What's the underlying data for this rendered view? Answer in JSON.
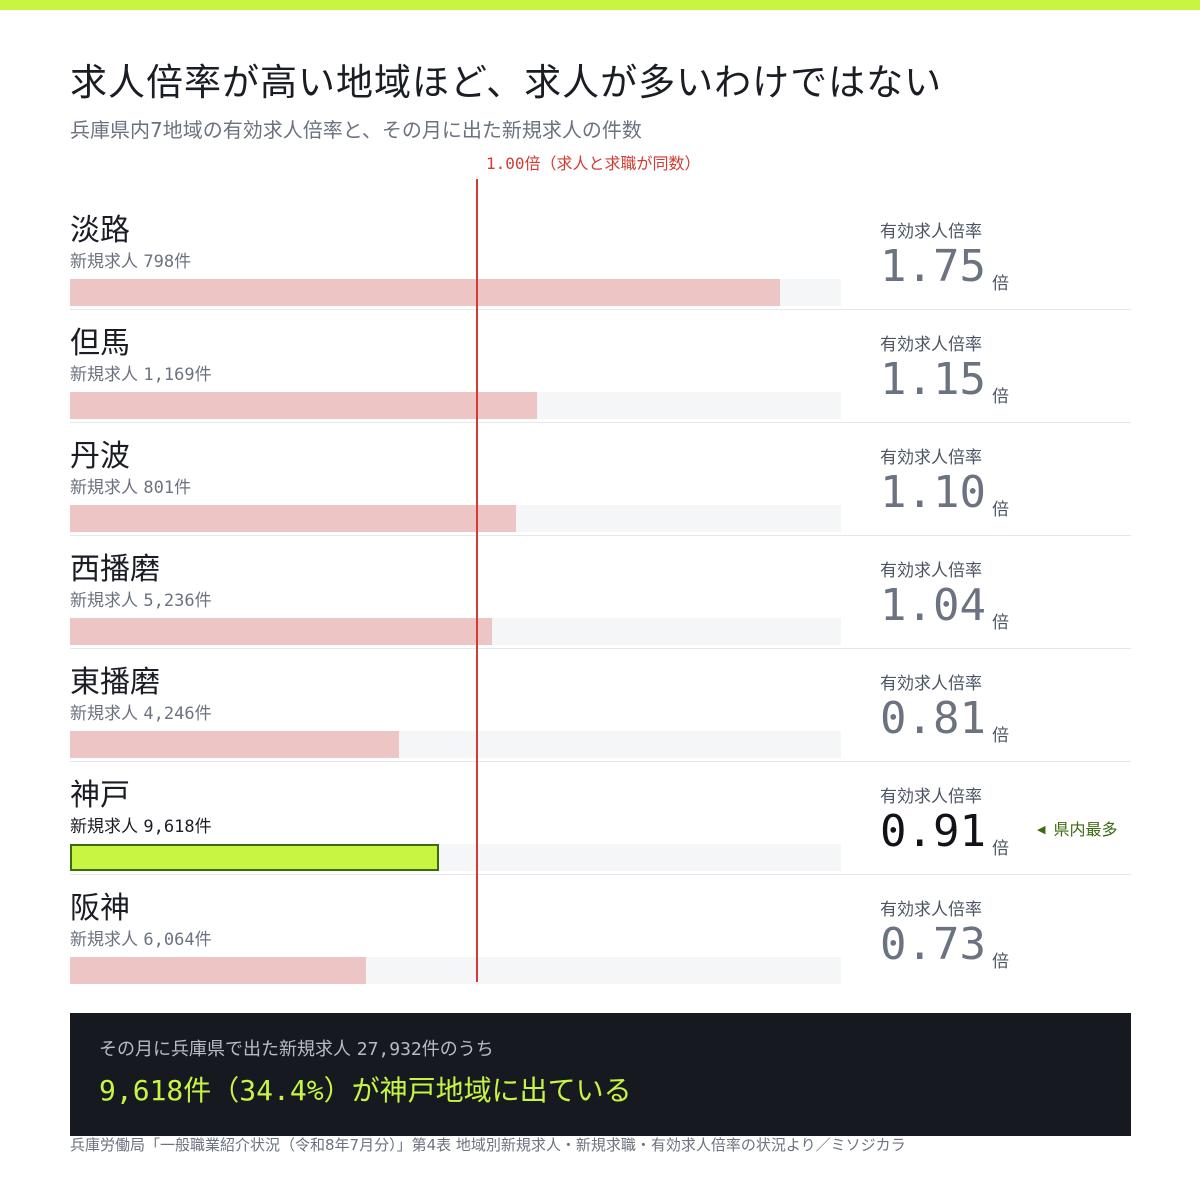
{
  "colors": {
    "accent": "#c8f542",
    "accent_dark": "#3d6b12",
    "bar": "#eec5c5",
    "track": "#f5f6f8",
    "reference_line": "#d23b34",
    "summary_bg": "#161920"
  },
  "title": "求人倍率が高い地域ほど、求人が多いわけではない",
  "subtitle": "兵庫県内7地域の有効求人倍率と、その月に出た新規求人の件数",
  "reference_label": "1.00倍（求人と求職が同数）",
  "ratio_label": "有効求人倍率",
  "ratio_unit": "倍",
  "count_prefix": "新規求人",
  "count_suffix": "件",
  "max_tag": "県内最多",
  "summary": {
    "lead_text": "その月に兵庫県で出た新規求人",
    "lead_total": "27,932件",
    "lead_tail": "のうち",
    "main_count": "9,618件（34.4%）",
    "main_text": "が神戸地域に出ている"
  },
  "source": "兵庫労働局「一般職業紹介状況（令和8年7月分）」第4表 地域別新規求人・新規求職・有効求人倍率の状況より／ミソジカラ",
  "chart_data": {
    "type": "bar",
    "orientation": "horizontal",
    "title": "求人倍率が高い地域ほど、求人が多いわけではない",
    "subtitle": "兵庫県内7地域の有効求人倍率と、その月に出た新規求人の件数",
    "xlim": [
      0,
      1.9
    ],
    "reference_value": 1.0,
    "reference_label": "1.00倍（求人と求職が同数）",
    "highlight": "神戸",
    "rows": [
      {
        "region": "淡路",
        "count": "798",
        "ratio": 1.75,
        "ratio_text": "1.75"
      },
      {
        "region": "但馬",
        "count": "1,169",
        "ratio": 1.15,
        "ratio_text": "1.15"
      },
      {
        "region": "丹波",
        "count": "801",
        "ratio": 1.1,
        "ratio_text": "1.10"
      },
      {
        "region": "西播磨",
        "count": "5,236",
        "ratio": 1.04,
        "ratio_text": "1.04"
      },
      {
        "region": "東播磨",
        "count": "4,246",
        "ratio": 0.81,
        "ratio_text": "0.81"
      },
      {
        "region": "神戸",
        "count": "9,618",
        "ratio": 0.91,
        "ratio_text": "0.91"
      },
      {
        "region": "阪神",
        "count": "6,064",
        "ratio": 0.73,
        "ratio_text": "0.73"
      }
    ]
  }
}
